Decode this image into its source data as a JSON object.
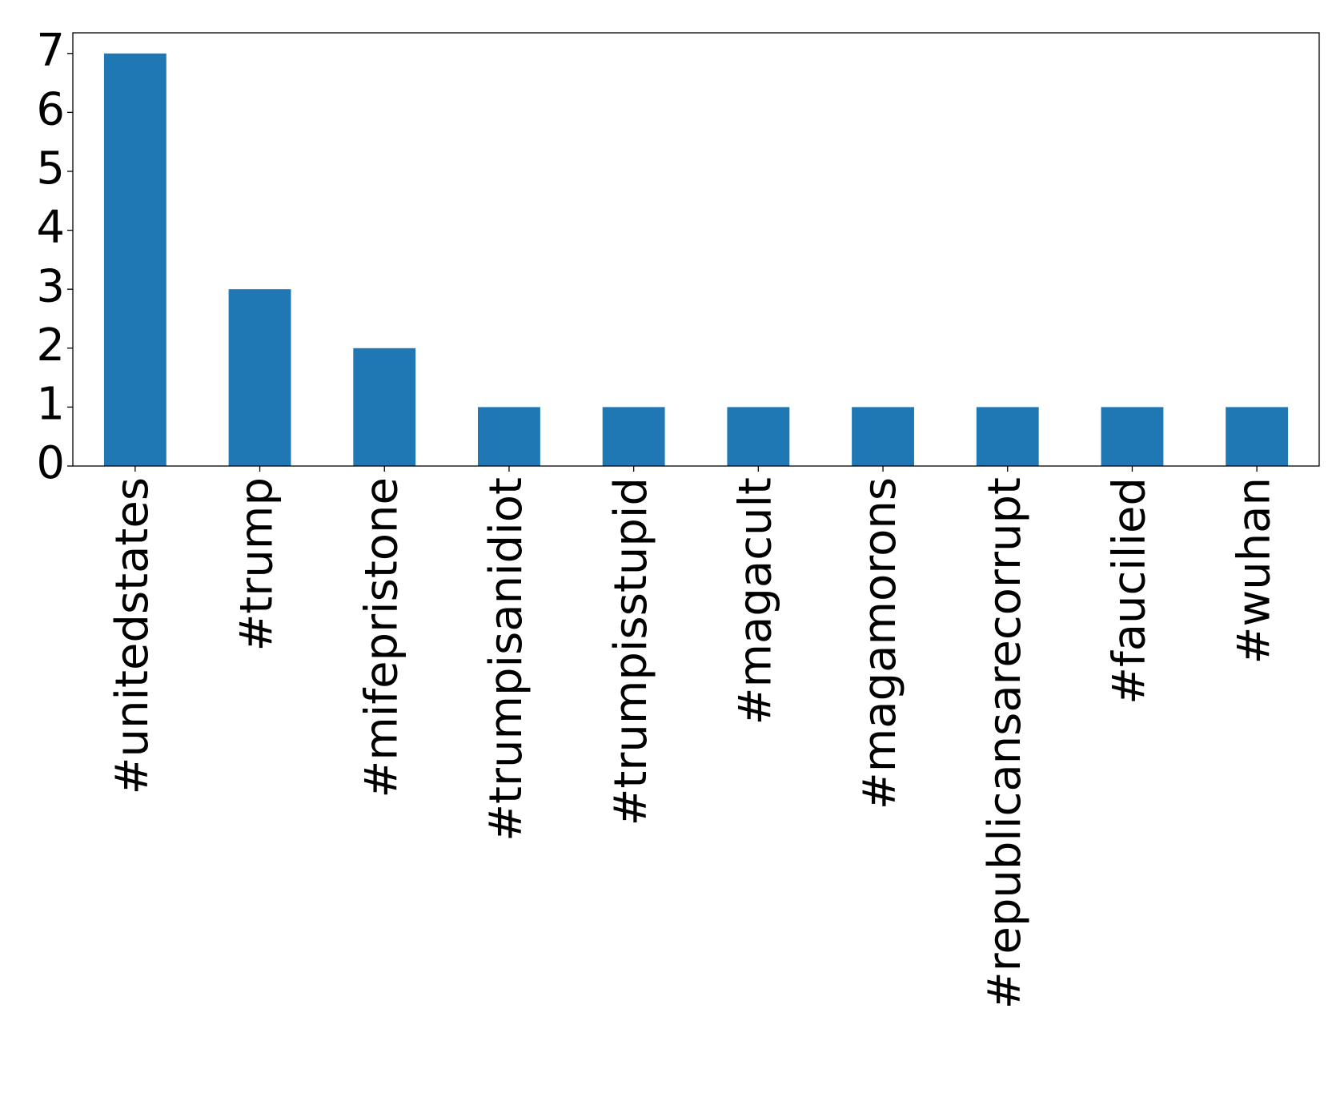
{
  "chart_data": {
    "type": "bar",
    "categories": [
      "#unitedstates",
      "#trump",
      "#mifepristone",
      "#trumpisanidiot",
      "#trumpisstupid",
      "#magacult",
      "#magamorons",
      "#republicansarecorrupt",
      "#faucilied",
      "#wuhan"
    ],
    "values": [
      7,
      3,
      2,
      1,
      1,
      1,
      1,
      1,
      1,
      1
    ],
    "color": "#1f77b4",
    "ylim": [
      0,
      7.35
    ],
    "yticks": [
      0,
      1,
      2,
      3,
      4,
      5,
      6,
      7
    ],
    "grid": false
  }
}
